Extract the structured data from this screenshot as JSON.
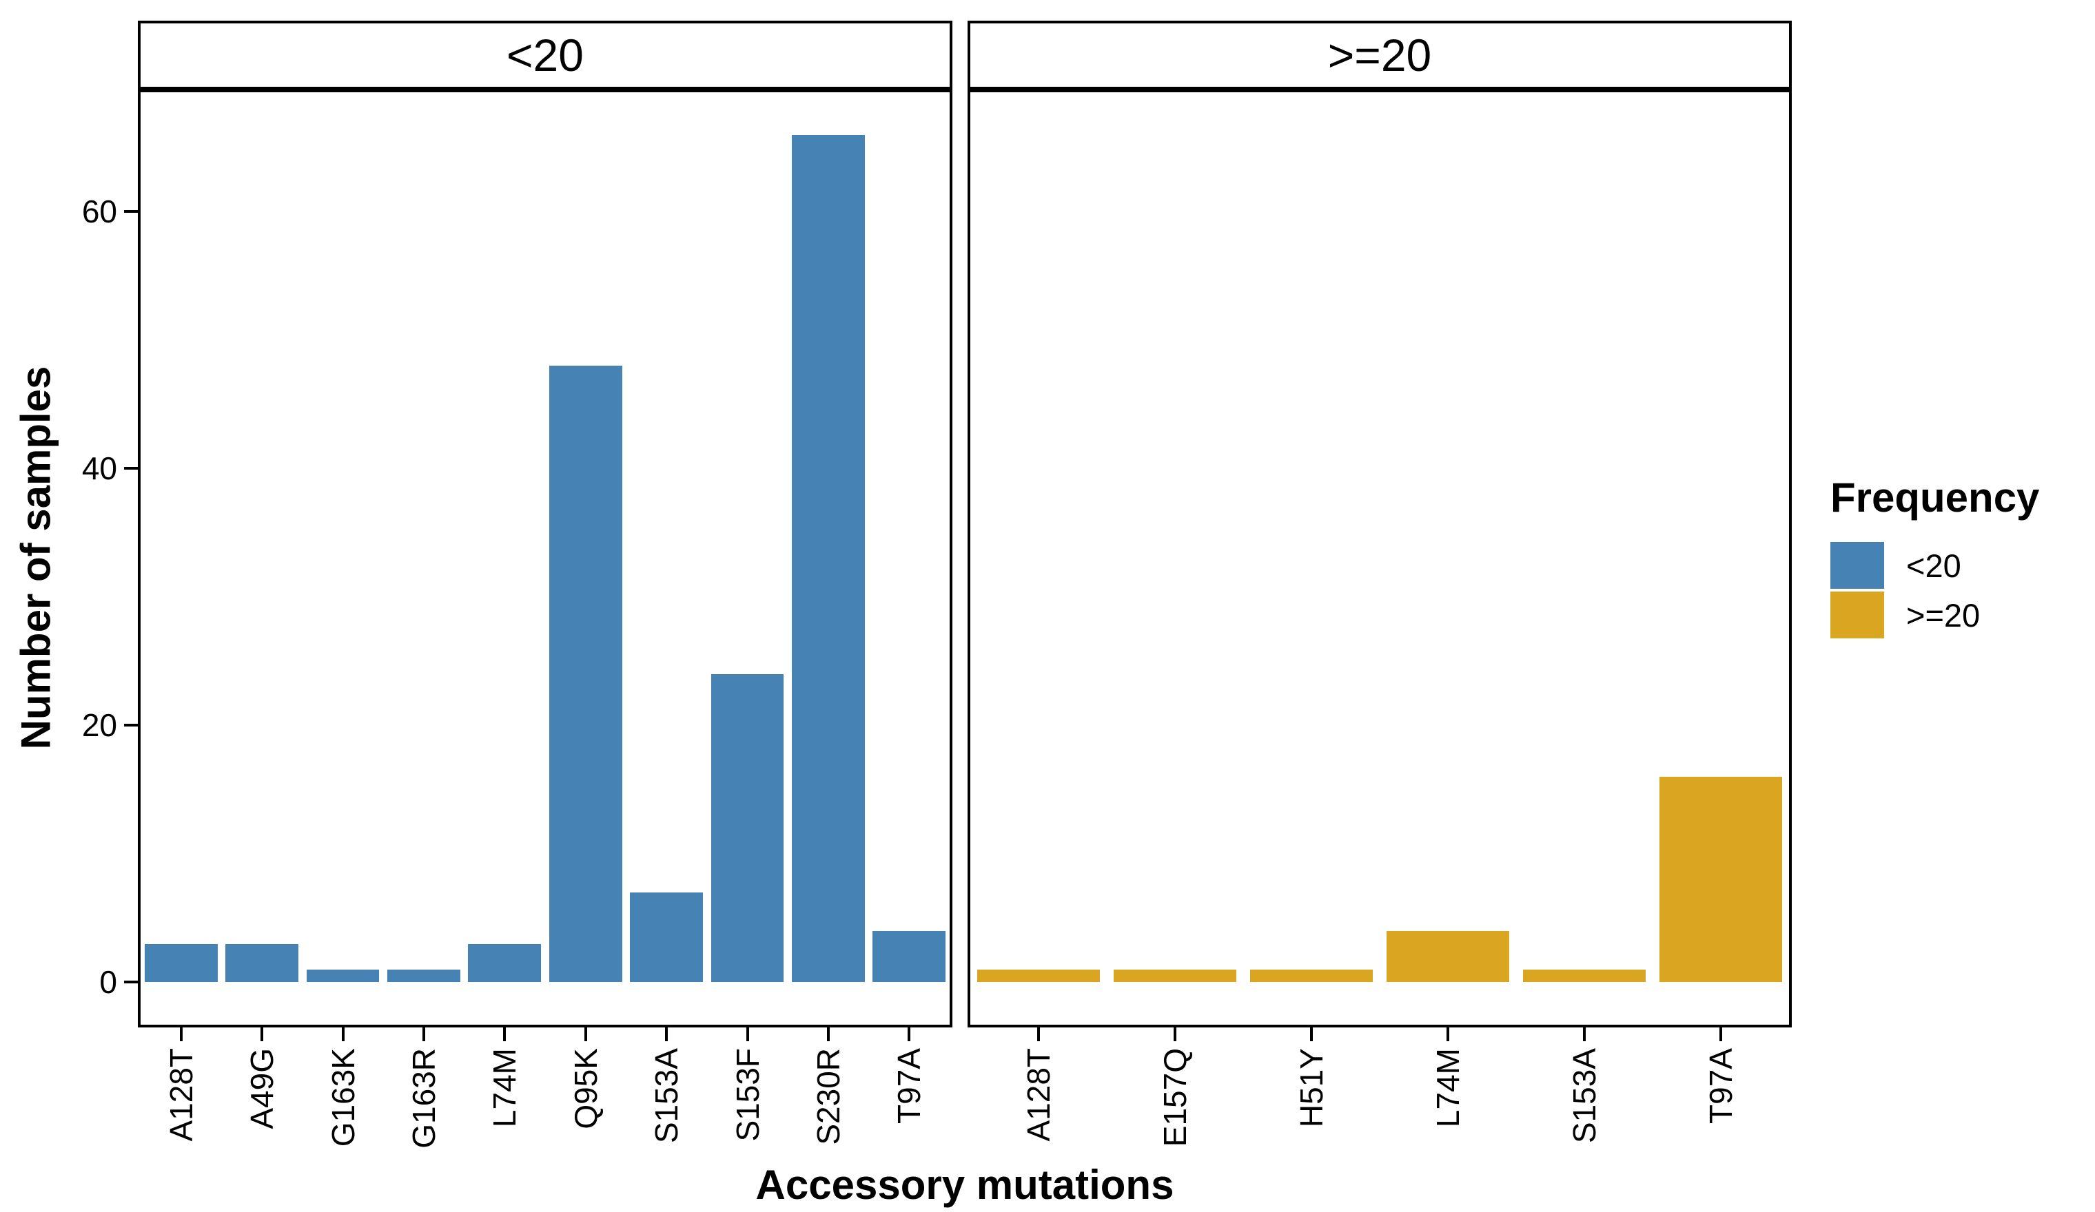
{
  "chart_data": {
    "type": "bar",
    "xlabel": "Accessory mutations",
    "ylabel": "Number of samples",
    "yticks": [
      0,
      20,
      40,
      60
    ],
    "ylim": [
      -3.3,
      69.3
    ],
    "grid": false,
    "bar_width_fraction": 0.9,
    "facets": [
      {
        "label": "<20",
        "color": "#4682B4",
        "categories": [
          "A128T",
          "A49G",
          "G163K",
          "G163R",
          "L74M",
          "Q95K",
          "S153A",
          "S153F",
          "S230R",
          "T97A"
        ],
        "values": [
          3,
          3,
          1,
          1,
          3,
          48,
          7,
          24,
          66,
          4
        ]
      },
      {
        "label": ">=20",
        "color": "#DAA520",
        "categories": [
          "A128T",
          "E157Q",
          "H51Y",
          "L74M",
          "S153A",
          "T97A"
        ],
        "values": [
          1,
          1,
          1,
          4,
          1,
          16
        ]
      }
    ],
    "legend": {
      "title": "Frequency",
      "position": "right",
      "entries": [
        {
          "label": "<20",
          "color": "#4682B4"
        },
        {
          "label": ">=20",
          "color": "#DAA520"
        }
      ]
    }
  }
}
